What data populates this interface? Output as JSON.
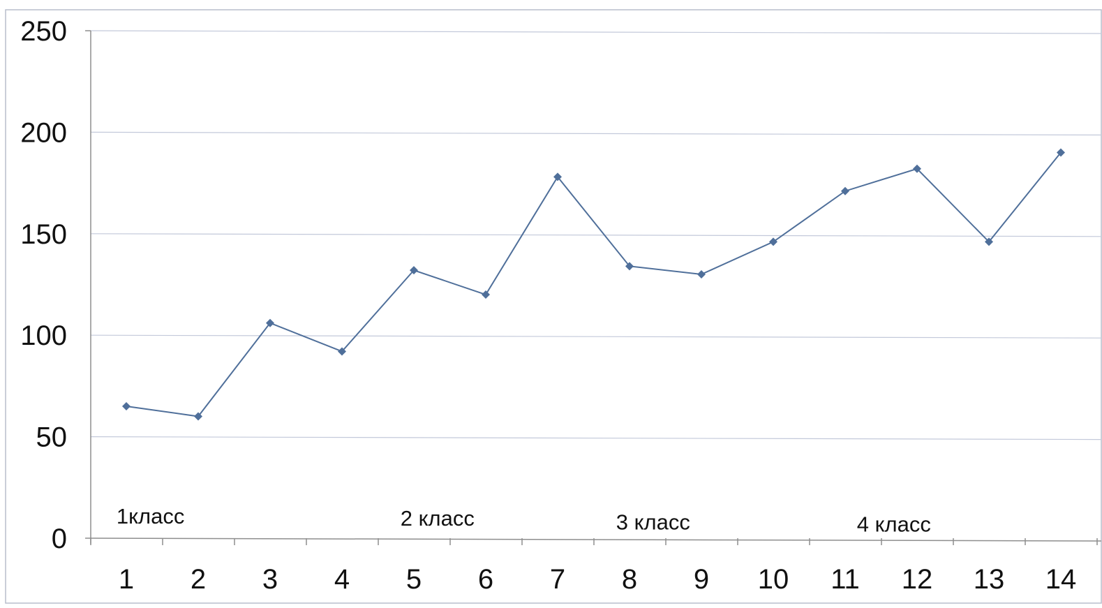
{
  "chart_data": {
    "type": "line",
    "categories": [
      "1",
      "2",
      "3",
      "4",
      "5",
      "6",
      "7",
      "8",
      "9",
      "10",
      "11",
      "12",
      "13",
      "14"
    ],
    "series": [
      {
        "values": [
          65,
          60,
          106,
          92,
          132,
          120,
          178,
          134,
          130,
          146,
          171,
          182,
          146,
          190
        ],
        "color": "#4f6f9a"
      }
    ],
    "yticks": [
      "0",
      "50",
      "100",
      "150",
      "200",
      "250"
    ],
    "ylim": [
      0,
      250
    ],
    "grid": "horizontal",
    "annotations": [
      {
        "text": "1класс",
        "x": 1.3,
        "y": 11
      },
      {
        "text": "2 класс",
        "x": 5.25,
        "y": 10
      },
      {
        "text": "3 класс",
        "x": 8.25,
        "y": 8
      },
      {
        "text": "4 класс",
        "x": 11.6,
        "y": 7
      }
    ],
    "colors": {
      "line": "#4f6f9a",
      "grid": "#c3c9da",
      "axis": "#8e8e8e",
      "frame": "#b8bdcc"
    }
  }
}
